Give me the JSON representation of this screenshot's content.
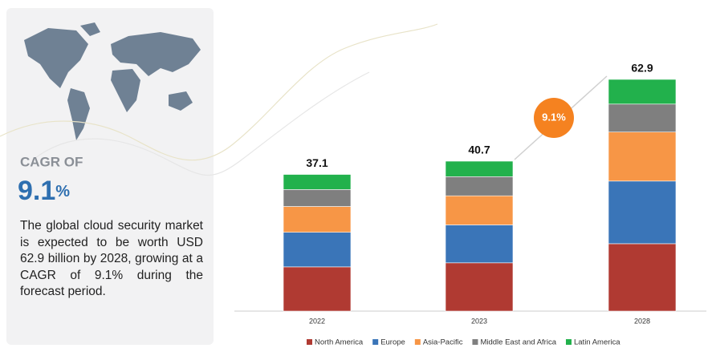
{
  "chart_data": {
    "type": "stacked_bar",
    "categories": [
      "2022",
      "2023",
      "2028"
    ],
    "series": [
      {
        "name": "North America",
        "color": "#b03a32",
        "values": [
          12.0,
          13.1,
          18.3
        ]
      },
      {
        "name": "Europe",
        "color": "#3a75b8",
        "values": [
          9.4,
          10.3,
          17.0
        ]
      },
      {
        "name": "Asia-Pacific",
        "color": "#f79646",
        "values": [
          7.0,
          7.9,
          13.3
        ]
      },
      {
        "name": "Middle East and Africa",
        "color": "#7f7f7f",
        "values": [
          4.6,
          5.2,
          7.6
        ]
      },
      {
        "name": "Latin America",
        "color": "#22b14c",
        "values": [
          4.1,
          4.2,
          6.7
        ]
      }
    ],
    "totals": [
      37.1,
      40.7,
      62.9
    ],
    "annotation": "9.1%",
    "cagr_label": "CAGR OF",
    "cagr_value": "9.1",
    "cagr_unit": "%",
    "description": "The global cloud security market is expected to be worth USD 62.9 billion by 2028, growing at a CAGR of 9.1% during the forecast period."
  }
}
